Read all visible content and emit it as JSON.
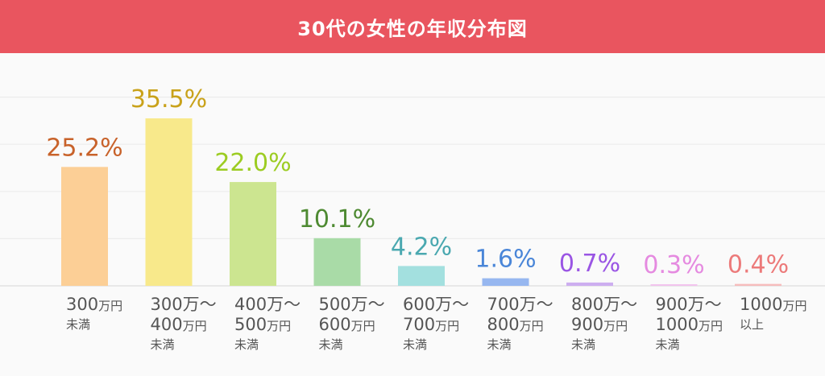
{
  "title": "30代の女性の年収分布図",
  "colors": {
    "header": "#e9555f",
    "background": "#fafafa",
    "grid": "#ececec",
    "axis": "#dddddd"
  },
  "chart_data": {
    "type": "bar",
    "title": "30代の女性の年収分布図",
    "xlabel": "",
    "ylabel": "",
    "ylim": [
      0,
      40
    ],
    "grid": true,
    "value_suffix": "%",
    "categories": [
      {
        "main": "300",
        "unit": "万円",
        "sub": "未満"
      },
      {
        "main": "300万～",
        "line2": "400",
        "unit": "万円",
        "sub": "未満"
      },
      {
        "main": "400万～",
        "line2": "500",
        "unit": "万円",
        "sub": "未満"
      },
      {
        "main": "500万～",
        "line2": "600",
        "unit": "万円",
        "sub": "未満"
      },
      {
        "main": "600万～",
        "line2": "700",
        "unit": "万円",
        "sub": "未満"
      },
      {
        "main": "700万～",
        "line2": "800",
        "unit": "万円",
        "sub": "未満"
      },
      {
        "main": "800万～",
        "line2": "900",
        "unit": "万円",
        "sub": "未満"
      },
      {
        "main": "900万～",
        "line2": "1000",
        "unit": "万円",
        "sub": "未満"
      },
      {
        "main": "1000",
        "unit": "万円",
        "sub": "以上"
      }
    ],
    "values": [
      25.2,
      35.5,
      22.0,
      10.1,
      4.2,
      1.6,
      0.7,
      0.3,
      0.4
    ],
    "value_labels": [
      "25.2%",
      "35.5%",
      "22.0%",
      "10.1%",
      "4.2%",
      "1.6%",
      "0.7%",
      "0.3%",
      "0.4%"
    ],
    "bar_colors": [
      "#fccf96",
      "#f8e98b",
      "#cce590",
      "#a9dba7",
      "#a3e0df",
      "#97b7f0",
      "#cdaef0",
      "#f2c4ee",
      "#f6bcbc"
    ],
    "label_colors": [
      "#c8622a",
      "#c9a21a",
      "#9ccc22",
      "#4e8a32",
      "#4aa8b0",
      "#4a86d8",
      "#9a55e4",
      "#e58ae0",
      "#ec7a7a"
    ]
  }
}
